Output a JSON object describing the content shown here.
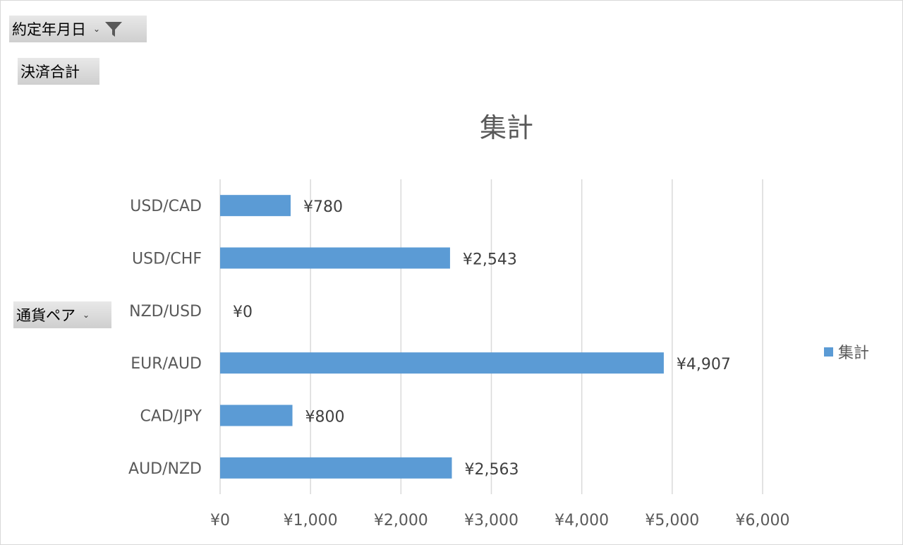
{
  "pivot_fields": {
    "filter_field": "約定年月日",
    "value_field": "決済合計",
    "axis_field": "通貨ペア"
  },
  "chart_data": {
    "type": "bar",
    "orientation": "horizontal",
    "title": "集計",
    "categories": [
      "USD/CAD",
      "USD/CHF",
      "NZD/USD",
      "EUR/AUD",
      "CAD/JPY",
      "AUD/NZD"
    ],
    "series": [
      {
        "name": "集計",
        "values": [
          780,
          2543,
          0,
          4907,
          800,
          2563
        ],
        "color": "#5b9bd5"
      }
    ],
    "data_labels": [
      "¥780",
      "¥2,543",
      "¥0",
      "¥4,907",
      "¥800",
      "¥2,563"
    ],
    "x_ticks": [
      "¥0",
      "¥1,000",
      "¥2,000",
      "¥3,000",
      "¥4,000",
      "¥5,000",
      "¥6,000"
    ],
    "xlim": [
      0,
      6000
    ],
    "grid": "vertical",
    "legend_position": "right"
  },
  "colors": {
    "bar": "#5b9bd5",
    "grid": "#d9d9d9",
    "text": "#595959"
  },
  "icons": {
    "filter": "funnel-icon",
    "dropdown": "dropdown-arrow-icon"
  }
}
